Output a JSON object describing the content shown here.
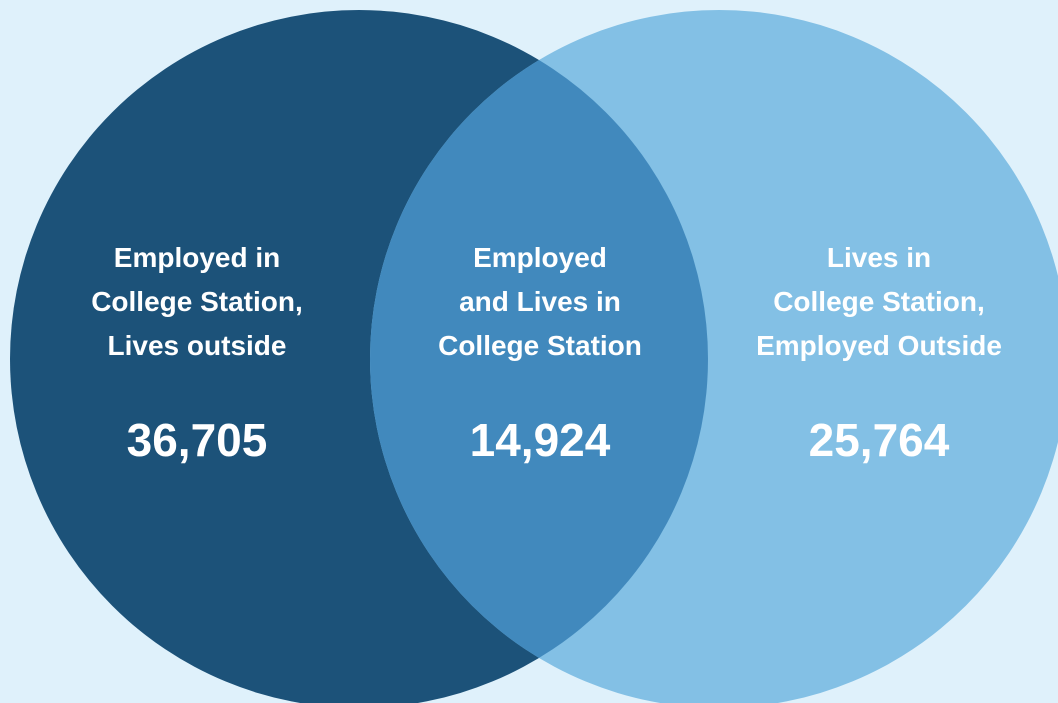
{
  "colors": {
    "background": "#dff1fb",
    "left_circle": "#1c5279",
    "right_circle": "#83c0e5",
    "overlap": "#4189bd",
    "text": "#ffffff"
  },
  "regions": {
    "left": {
      "label": "Employed in\nCollege Station,\nLives outside",
      "value": "36,705"
    },
    "center": {
      "label": "Employed\nand Lives in\nCollege Station",
      "value": "14,924"
    },
    "right": {
      "label": "Lives in\nCollege Station,\nEmployed Outside",
      "value": "25,764"
    }
  }
}
